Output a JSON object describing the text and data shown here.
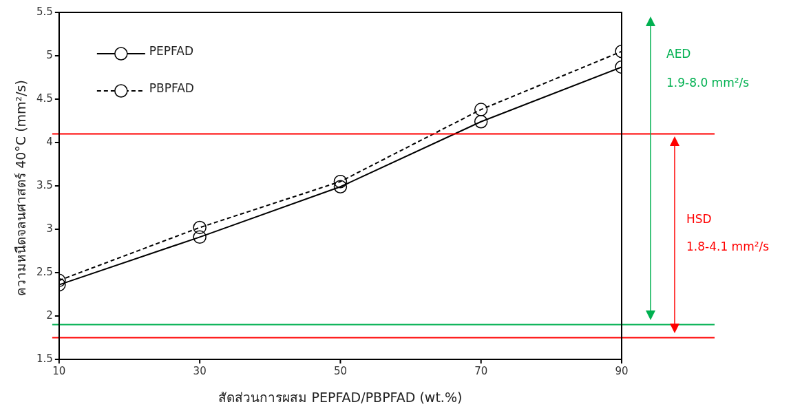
{
  "chart_data": {
    "type": "line",
    "xlabel": "สัดส่วนการผสม PEPFAD/PBPFAD (wt.%)",
    "ylabel": "ความหนืดจลนศาสตร์ 40°C (mm²/s)",
    "x": [
      10,
      30,
      50,
      70,
      90
    ],
    "series": [
      {
        "name": "PEPFAD",
        "color": "#000000",
        "line_style": "solid",
        "values": [
          2.36,
          2.91,
          3.49,
          4.24,
          4.87
        ]
      },
      {
        "name": "PBPFAD",
        "color": "#000000",
        "line_style": "dashed",
        "values": [
          2.41,
          3.02,
          3.55,
          4.38,
          5.05
        ]
      }
    ],
    "xlim": [
      10,
      90
    ],
    "xticks": [
      10,
      30,
      50,
      70,
      90
    ],
    "ylim": [
      1.5,
      5.5
    ],
    "yticks": [
      1.5,
      2,
      2.5,
      3,
      3.5,
      4,
      4.5,
      5,
      5.5
    ],
    "grid": false,
    "legend": "top left",
    "marker": "circle",
    "ref_lines": [
      {
        "axis": "y",
        "value": 4.1,
        "color": "#ff0000"
      },
      {
        "axis": "y",
        "value": 1.9,
        "color": "#00b050"
      },
      {
        "axis": "y",
        "value": 1.75,
        "color": "#ff0000"
      }
    ],
    "annotations": [
      "AED",
      "1.9-8.0 mm²/s",
      "HSD",
      "1.8-4.1 mm²/s"
    ]
  }
}
